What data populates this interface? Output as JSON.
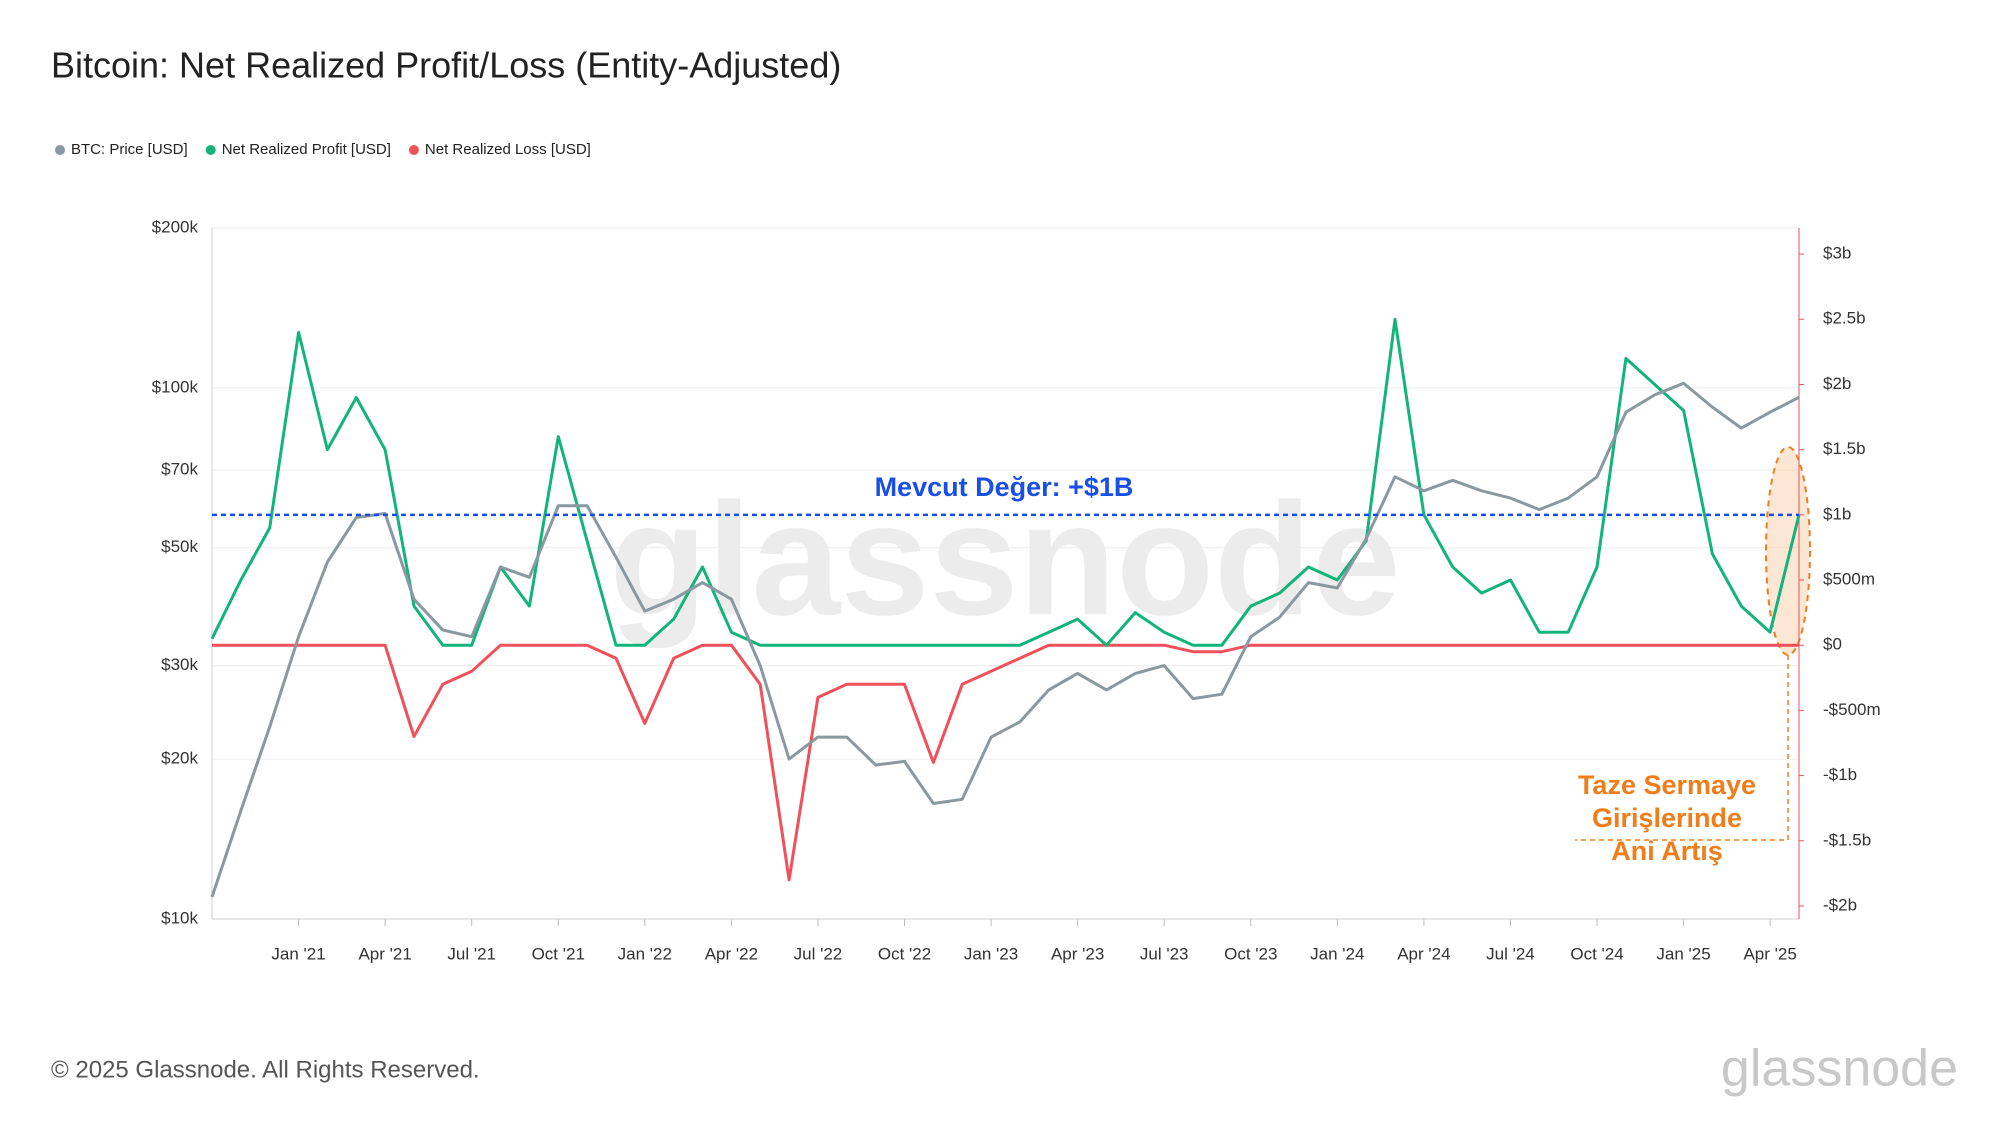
{
  "chart_data": {
    "type": "line",
    "title": "Bitcoin: Net Realized Profit/Loss (Entity-Adjusted)",
    "x": [
      "2020-10",
      "2020-11",
      "2020-12",
      "2021-01",
      "2021-02",
      "2021-03",
      "2021-04",
      "2021-05",
      "2021-06",
      "2021-07",
      "2021-08",
      "2021-09",
      "2021-10",
      "2021-11",
      "2021-12",
      "2022-01",
      "2022-02",
      "2022-03",
      "2022-04",
      "2022-05",
      "2022-06",
      "2022-07",
      "2022-08",
      "2022-09",
      "2022-10",
      "2022-11",
      "2022-12",
      "2023-01",
      "2023-02",
      "2023-03",
      "2023-04",
      "2023-05",
      "2023-06",
      "2023-07",
      "2023-08",
      "2023-09",
      "2023-10",
      "2023-11",
      "2023-12",
      "2024-01",
      "2024-02",
      "2024-03",
      "2024-04",
      "2024-05",
      "2024-06",
      "2024-07",
      "2024-08",
      "2024-09",
      "2024-10",
      "2024-11",
      "2024-12",
      "2025-01",
      "2025-02",
      "2025-03",
      "2025-04",
      "2025-05"
    ],
    "xlim": [
      "2020-10",
      "2025-05"
    ],
    "xticks": [
      {
        "value": "2021-01",
        "label": "Jan '21"
      },
      {
        "value": "2021-04",
        "label": "Apr '21"
      },
      {
        "value": "2021-07",
        "label": "Jul '21"
      },
      {
        "value": "2021-10",
        "label": "Oct '21"
      },
      {
        "value": "2022-01",
        "label": "Jan '22"
      },
      {
        "value": "2022-04",
        "label": "Apr '22"
      },
      {
        "value": "2022-07",
        "label": "Jul '22"
      },
      {
        "value": "2022-10",
        "label": "Oct '22"
      },
      {
        "value": "2023-01",
        "label": "Jan '23"
      },
      {
        "value": "2023-04",
        "label": "Apr '23"
      },
      {
        "value": "2023-07",
        "label": "Jul '23"
      },
      {
        "value": "2023-10",
        "label": "Oct '23"
      },
      {
        "value": "2024-01",
        "label": "Jan '24"
      },
      {
        "value": "2024-04",
        "label": "Apr '24"
      },
      {
        "value": "2024-07",
        "label": "Jul '24"
      },
      {
        "value": "2024-10",
        "label": "Oct '24"
      },
      {
        "value": "2025-01",
        "label": "Jan '25"
      },
      {
        "value": "2025-04",
        "label": "Apr '25"
      }
    ],
    "ylog": true,
    "ylim": [
      10,
      200
    ],
    "yticks": [
      {
        "value": 10,
        "label": "$10k"
      },
      {
        "value": 20,
        "label": "$20k"
      },
      {
        "value": 30,
        "label": "$30k"
      },
      {
        "value": 50,
        "label": "$50k"
      },
      {
        "value": 70,
        "label": "$70k"
      },
      {
        "value": 100,
        "label": "$100k"
      },
      {
        "value": 200,
        "label": "$200k"
      }
    ],
    "y2lim": [
      -2.1,
      3.2
    ],
    "y2ticks": [
      {
        "value": 3,
        "label": "$3b"
      },
      {
        "value": 2.5,
        "label": "$2.5b"
      },
      {
        "value": 2,
        "label": "$2b"
      },
      {
        "value": 1.5,
        "label": "$1.5b"
      },
      {
        "value": 1,
        "label": "$1b"
      },
      {
        "value": 0.5,
        "label": "$500m"
      },
      {
        "value": 0,
        "label": "$0"
      },
      {
        "value": -0.5,
        "label": "-$500m"
      },
      {
        "value": -1,
        "label": "-$1b"
      },
      {
        "value": -1.5,
        "label": "-$1.5b"
      },
      {
        "value": -2,
        "label": "-$2b"
      }
    ],
    "grid": true,
    "series": [
      {
        "name": "BTC: Price [USD]",
        "color": "#8a989f",
        "axis": "y",
        "values": [
          11,
          16,
          23,
          34,
          47,
          57,
          58,
          40,
          35,
          34,
          46,
          44,
          60,
          60,
          48,
          38,
          40,
          43,
          40,
          30,
          20,
          22,
          22,
          19.5,
          19.8,
          16.5,
          16.8,
          22,
          23.5,
          27,
          29,
          27,
          29,
          30,
          26,
          26.5,
          34,
          37,
          43,
          42,
          52,
          68,
          64,
          67,
          64,
          62,
          59,
          62,
          68,
          90,
          97,
          102,
          92,
          84,
          90,
          96
        ]
      },
      {
        "name": "Net Realized Profit [USD]",
        "color": "#13b47a",
        "axis": "y2",
        "values": [
          0.05,
          0.5,
          0.9,
          2.4,
          1.5,
          1.9,
          1.5,
          0.3,
          0,
          0,
          0.6,
          0.3,
          1.6,
          0.8,
          0,
          0,
          0.2,
          0.6,
          0.1,
          0,
          0,
          0,
          0,
          0,
          0,
          0,
          0,
          0,
          0,
          0.1,
          0.2,
          0,
          0.25,
          0.1,
          0,
          0,
          0.3,
          0.4,
          0.6,
          0.5,
          0.8,
          2.5,
          1,
          0.6,
          0.4,
          0.5,
          0.1,
          0.1,
          0.6,
          2.2,
          2,
          1.8,
          0.7,
          0.3,
          0.1,
          1
        ]
      },
      {
        "name": "Net Realized Loss [USD]",
        "color": "#f0505a",
        "axis": "y2",
        "values": [
          0,
          0,
          0,
          0,
          0,
          0,
          0,
          -0.7,
          -0.3,
          -0.2,
          0,
          0,
          0,
          0,
          -0.1,
          -0.6,
          -0.1,
          0,
          0,
          -0.3,
          -1.8,
          -0.4,
          -0.3,
          -0.3,
          -0.3,
          -0.9,
          -0.3,
          -0.2,
          -0.1,
          0,
          0,
          0,
          0,
          0,
          -0.05,
          -0.05,
          0,
          0,
          0,
          0,
          0,
          0,
          0,
          0,
          0,
          0,
          0,
          0,
          0,
          0,
          0,
          0,
          0,
          0,
          0,
          0
        ]
      }
    ],
    "reference": {
      "text": "Mevcut Değer: +$1B",
      "value": 1,
      "color": "#1a4fe6"
    },
    "callout": {
      "lines": [
        "Taze Sermaye",
        "Girişlerinde",
        "Ani Artış"
      ],
      "color": "#f07d1a"
    },
    "watermark": "glassnode",
    "footer": "© 2025 Glassnode. All Rights Reserved.",
    "logo": "glassnode"
  }
}
